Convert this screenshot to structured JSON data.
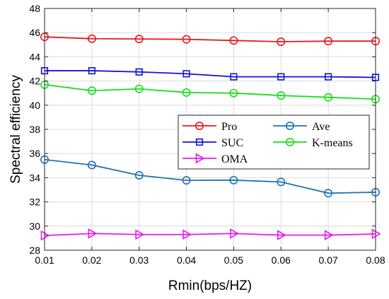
{
  "chart_data": {
    "type": "line",
    "title": "",
    "xlabel": "Rmin(bps/HZ)",
    "ylabel": "Spectral efficiency",
    "xlim": [
      0.01,
      0.08
    ],
    "ylim": [
      28,
      48
    ],
    "x": [
      0.01,
      0.02,
      0.03,
      0.04,
      0.05,
      0.06,
      0.07,
      0.08
    ],
    "xtick_labels": [
      "0.01",
      "0.02",
      "0.03",
      "0.04",
      "0.05",
      "0.06",
      "0.07",
      "0.08"
    ],
    "yticks": [
      28,
      30,
      32,
      34,
      36,
      38,
      40,
      42,
      44,
      46,
      48
    ],
    "ytick_labels": [
      "28",
      "30",
      "32",
      "34",
      "36",
      "38",
      "40",
      "42",
      "44",
      "46",
      "48"
    ],
    "grid": true,
    "legend_position": "center-right",
    "series": [
      {
        "name": "Pro",
        "color": "#e8191f",
        "marker": "circle",
        "values": [
          45.65,
          45.5,
          45.48,
          45.45,
          45.35,
          45.25,
          45.3,
          45.3
        ]
      },
      {
        "name": "SUC",
        "color": "#1212d6",
        "marker": "square",
        "values": [
          42.85,
          42.85,
          42.75,
          42.6,
          42.35,
          42.35,
          42.35,
          42.3
        ]
      },
      {
        "name": "Ave",
        "color": "#1f73b4",
        "marker": "circle",
        "values": [
          35.5,
          35.05,
          34.2,
          33.78,
          33.8,
          33.65,
          32.72,
          32.8
        ]
      },
      {
        "name": "K-means",
        "color": "#17e01a",
        "marker": "circle",
        "values": [
          41.7,
          41.2,
          41.35,
          41.05,
          41.0,
          40.8,
          40.65,
          40.5
        ]
      },
      {
        "name": "OMA",
        "color": "#e81ce8",
        "marker": "triangle-right",
        "values": [
          29.22,
          29.38,
          29.3,
          29.3,
          29.38,
          29.25,
          29.25,
          29.35
        ]
      }
    ]
  }
}
